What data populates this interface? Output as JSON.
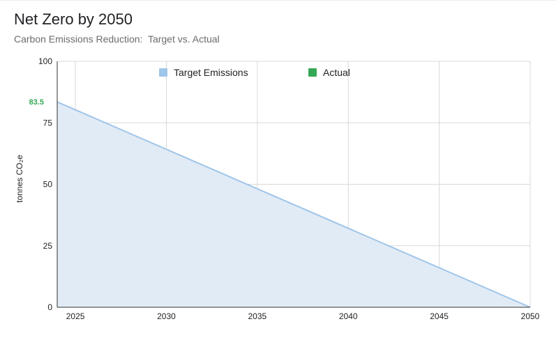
{
  "header": {
    "title": "Net Zero by 2050",
    "subtitle": "Carbon Emissions Reduction:  Target vs. Actual"
  },
  "chart_data": {
    "type": "area",
    "title": "Net Zero by 2050",
    "subtitle": "Carbon Emissions Reduction:  Target vs. Actual",
    "xlabel": "",
    "ylabel": "tonnes CO₂e",
    "xlim": [
      2024,
      2050
    ],
    "ylim": [
      0,
      100
    ],
    "x_ticks": [
      "2025",
      "2030",
      "2035",
      "2040",
      "2045",
      "2050"
    ],
    "y_ticks": [
      "0",
      "25",
      "50",
      "75",
      "100"
    ],
    "grid": true,
    "legend_position": "top",
    "series": [
      {
        "name": "Target Emissions",
        "color": "#9fc5e8",
        "fill": "#e1ebf6",
        "points": [
          {
            "x": 2024,
            "y": 83.5
          },
          {
            "x": 2050,
            "y": 0
          }
        ]
      },
      {
        "name": "Actual",
        "color": "#34a853",
        "points": []
      }
    ],
    "annotations": [
      {
        "text": "83.5",
        "x": 2024,
        "y": 83.5,
        "color": "#34a853"
      }
    ]
  }
}
